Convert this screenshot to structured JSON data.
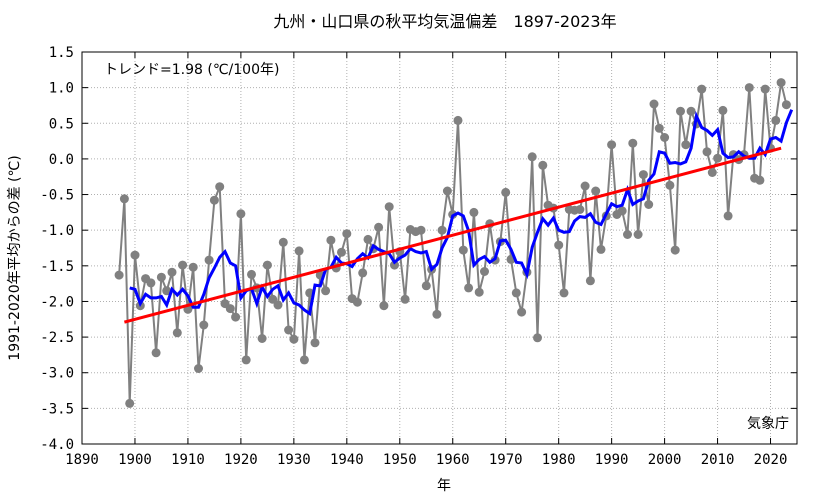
{
  "chart_data": {
    "type": "line",
    "title": "九州・山口県の秋平均気温偏差　1897-2023年",
    "xlabel": "年",
    "ylabel": "1991-2020年平均からの差 (℃)",
    "xlim": [
      1890,
      2025
    ],
    "ylim": [
      -4.0,
      1.5
    ],
    "x_ticks": [
      1890,
      1900,
      1910,
      1920,
      1930,
      1940,
      1950,
      1960,
      1970,
      1980,
      1990,
      2000,
      2010,
      2020
    ],
    "y_ticks": [
      1.5,
      1.0,
      0.5,
      0.0,
      -0.5,
      -1.0,
      -1.5,
      -2.0,
      -2.5,
      -3.0,
      -3.5,
      -4.0
    ],
    "y_tick_labels": [
      "1.5",
      "1.0",
      "0.5",
      "0.0",
      "-0.5",
      "-1.0",
      "-1.5",
      "-2.0",
      "-2.5",
      "-3.0",
      "-3.5",
      "-4.0"
    ],
    "grid": true,
    "trend_label": "トレンド=1.98 (℃/100年)",
    "source_label": "気象庁",
    "colors": {
      "annual": "#808080",
      "moving_avg": "#0000ff",
      "trend": "#ff0000"
    },
    "series": [
      {
        "role": "annual",
        "start_year": 1897,
        "values": [
          -1.63,
          -0.56,
          -3.43,
          -1.35,
          -2.06,
          -1.68,
          -1.74,
          -2.72,
          -1.66,
          -1.85,
          -1.59,
          -2.44,
          -1.49,
          -2.11,
          -1.52,
          -2.94,
          -2.33,
          -1.42,
          -0.58,
          -0.39,
          -2.03,
          -2.1,
          -2.22,
          -0.77,
          -2.82,
          -1.62,
          -1.81,
          -2.52,
          -1.49,
          -1.97,
          -2.05,
          -1.17,
          -2.4,
          -2.53,
          -1.29,
          -2.82,
          -1.88,
          -2.58,
          -1.63,
          -1.85,
          -1.14,
          -1.53,
          -1.31,
          -1.05,
          -1.96,
          -2.01,
          -1.6,
          -1.13,
          -1.26,
          -0.96,
          -2.06,
          -0.67,
          -1.49,
          -1.3,
          -1.97,
          -0.99,
          -1.02,
          -1.0,
          -1.78,
          -1.55,
          -2.18,
          -1.0,
          -0.45,
          -0.78,
          0.54,
          -1.28,
          -1.81,
          -0.75,
          -1.87,
          -1.58,
          -0.91,
          -1.42,
          -1.16,
          -0.47,
          -1.41,
          -1.88,
          -2.15,
          -1.59,
          0.03,
          -2.51,
          -0.09,
          -0.65,
          -0.69,
          -1.21,
          -1.88,
          -0.71,
          -0.72,
          -0.71,
          -0.38,
          -1.71,
          -0.45,
          -1.27,
          -0.8,
          0.2,
          -0.78,
          -0.73,
          -1.06,
          0.22,
          -1.06,
          -0.22,
          -0.64,
          0.77,
          0.43,
          0.3,
          -0.37,
          -1.28,
          0.67,
          0.2,
          0.67,
          0.49,
          0.98,
          0.1,
          -0.19,
          0.01,
          0.68,
          -0.8,
          0.06,
          -0.01,
          0.06,
          1.0,
          -0.27,
          -0.3,
          0.98,
          0.15,
          0.54,
          1.07,
          0.76
        ]
      },
      {
        "role": "moving_avg",
        "start_year": 1899,
        "values": [
          -1.81,
          -1.83,
          -2.03,
          -1.9,
          -1.95,
          -1.95,
          -1.93,
          -2.05,
          -1.83,
          -1.91,
          -1.83,
          -1.92,
          -2.08,
          -2.08,
          -1.9,
          -1.67,
          -1.53,
          -1.38,
          -1.3,
          -1.46,
          -1.5,
          -1.95,
          -1.85,
          -1.82,
          -2.03,
          -1.8,
          -1.93,
          -1.83,
          -1.78,
          -1.98,
          -1.88,
          -2.02,
          -2.05,
          -2.12,
          -2.17,
          -1.77,
          -1.78,
          -1.55,
          -1.52,
          -1.38,
          -1.46,
          -1.47,
          -1.51,
          -1.4,
          -1.33,
          -1.39,
          -1.22,
          -1.27,
          -1.3,
          -1.33,
          -1.45,
          -1.39,
          -1.35,
          -1.26,
          -1.3,
          -1.32,
          -1.3,
          -1.55,
          -1.48,
          -1.25,
          -1.1,
          -0.8,
          -0.76,
          -0.8,
          -1.01,
          -1.49,
          -1.41,
          -1.37,
          -1.45,
          -1.4,
          -1.15,
          -1.14,
          -1.27,
          -1.45,
          -1.46,
          -1.62,
          -1.24,
          -1.03,
          -0.84,
          -0.93,
          -0.83,
          -1.0,
          -1.03,
          -1.02,
          -0.87,
          -0.81,
          -0.82,
          -0.77,
          -0.89,
          -0.92,
          -0.77,
          -0.63,
          -0.67,
          -0.65,
          -0.43,
          -0.64,
          -0.59,
          -0.56,
          -0.3,
          -0.21,
          0.1,
          0.08,
          -0.06,
          -0.05,
          -0.07,
          -0.04,
          0.15,
          0.6,
          0.44,
          0.4,
          0.33,
          0.41,
          0.08,
          0.02,
          0.03,
          0.1,
          0.04,
          0.01,
          0.01,
          0.15,
          0.06,
          0.28,
          0.3,
          0.25,
          0.51,
          0.69
        ]
      },
      {
        "role": "trend",
        "x": [
          1898,
          2022
        ],
        "values": [
          -2.29,
          0.15
        ]
      }
    ]
  }
}
